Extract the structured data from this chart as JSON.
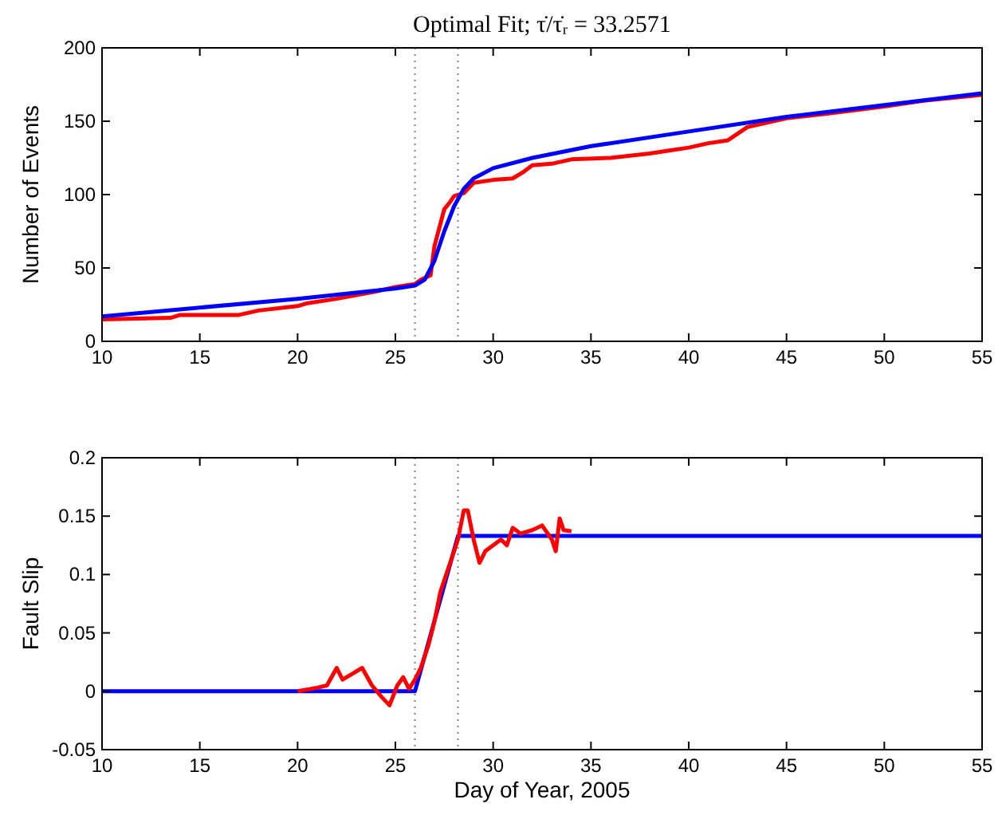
{
  "chart_data": [
    {
      "type": "line",
      "title": "Optimal Fit; τ̇/τ̇ᵣ = 33.2571",
      "ylabel": "Number of Events",
      "xlim": [
        10,
        55
      ],
      "xticks": [
        10,
        15,
        20,
        25,
        30,
        35,
        40,
        45,
        50,
        55
      ],
      "ylim": [
        0,
        200
      ],
      "yticks": [
        0,
        50,
        100,
        150,
        200
      ],
      "line_style": "solid",
      "marker": "none",
      "ref_lines": [
        {
          "axis": "x",
          "value": 26,
          "color": "#808080",
          "line_style": "dotted"
        },
        {
          "axis": "x",
          "value": 28.2,
          "color": "#808080",
          "line_style": "dotted"
        }
      ],
      "series": [
        {
          "color": "#ff0000",
          "x": [
            10,
            13.5,
            14,
            17,
            18,
            20,
            20.5,
            22,
            24,
            25,
            26,
            26.3,
            26.8,
            27,
            27.2,
            27.5,
            27.8,
            28,
            28.5,
            29,
            30,
            31,
            31.5,
            32,
            33,
            34,
            36,
            38,
            39,
            40,
            41,
            42,
            43,
            44,
            45,
            47,
            50,
            52,
            55
          ],
          "values": [
            15,
            16,
            18,
            18,
            21,
            24,
            26,
            29,
            34,
            37,
            39,
            42,
            45,
            65,
            75,
            90,
            95,
            99,
            101,
            108,
            110,
            111,
            115,
            120,
            121,
            124,
            125,
            128,
            130,
            132,
            135,
            137,
            146,
            149,
            152,
            155,
            160,
            164,
            168
          ]
        },
        {
          "color": "#0000ff",
          "x": [
            10,
            20,
            25,
            26,
            26.5,
            27,
            27.5,
            28,
            28.5,
            29,
            30,
            32,
            35,
            40,
            45,
            50,
            55
          ],
          "values": [
            17,
            29,
            36,
            38,
            42,
            55,
            75,
            92,
            104,
            111,
            118,
            125,
            133,
            143,
            153,
            161,
            169
          ]
        }
      ]
    },
    {
      "type": "line",
      "xlabel": "Day of Year, 2005",
      "ylabel": "Fault Slip",
      "xlim": [
        10,
        55
      ],
      "xticks": [
        10,
        15,
        20,
        25,
        30,
        35,
        40,
        45,
        50,
        55
      ],
      "ylim": [
        -0.05,
        0.2
      ],
      "yticks": [
        -0.05,
        0,
        0.05,
        0.1,
        0.15,
        0.2
      ],
      "line_style": "solid",
      "marker": "none",
      "ref_lines": [
        {
          "axis": "x",
          "value": 26,
          "color": "#808080",
          "line_style": "dotted"
        },
        {
          "axis": "x",
          "value": 28.2,
          "color": "#808080",
          "line_style": "dotted"
        }
      ],
      "series": [
        {
          "color": "#0000ff",
          "x": [
            10,
            26,
            28.2,
            55
          ],
          "values": [
            0,
            0,
            0.133,
            0.133
          ]
        },
        {
          "color": "#ff0000",
          "x": [
            20,
            21,
            21.5,
            22,
            22.3,
            22.8,
            23.3,
            23.8,
            24.3,
            24.7,
            25.1,
            25.4,
            25.7,
            26,
            26.3,
            26.7,
            27,
            27.3,
            27.6,
            27.9,
            28.2,
            28.5,
            28.7,
            29,
            29.3,
            29.6,
            30,
            30.4,
            30.7,
            31,
            31.4,
            32,
            32.5,
            33,
            33.2,
            33.4,
            33.6,
            34
          ],
          "values": [
            0,
            0.003,
            0.005,
            0.02,
            0.01,
            0.015,
            0.02,
            0.005,
            -0.005,
            -0.012,
            0.005,
            0.012,
            0.002,
            0.01,
            0.02,
            0.04,
            0.06,
            0.085,
            0.1,
            0.115,
            0.13,
            0.155,
            0.155,
            0.13,
            0.11,
            0.12,
            0.125,
            0.13,
            0.125,
            0.14,
            0.135,
            0.138,
            0.142,
            0.13,
            0.12,
            0.148,
            0.138,
            0.137
          ]
        }
      ]
    }
  ]
}
